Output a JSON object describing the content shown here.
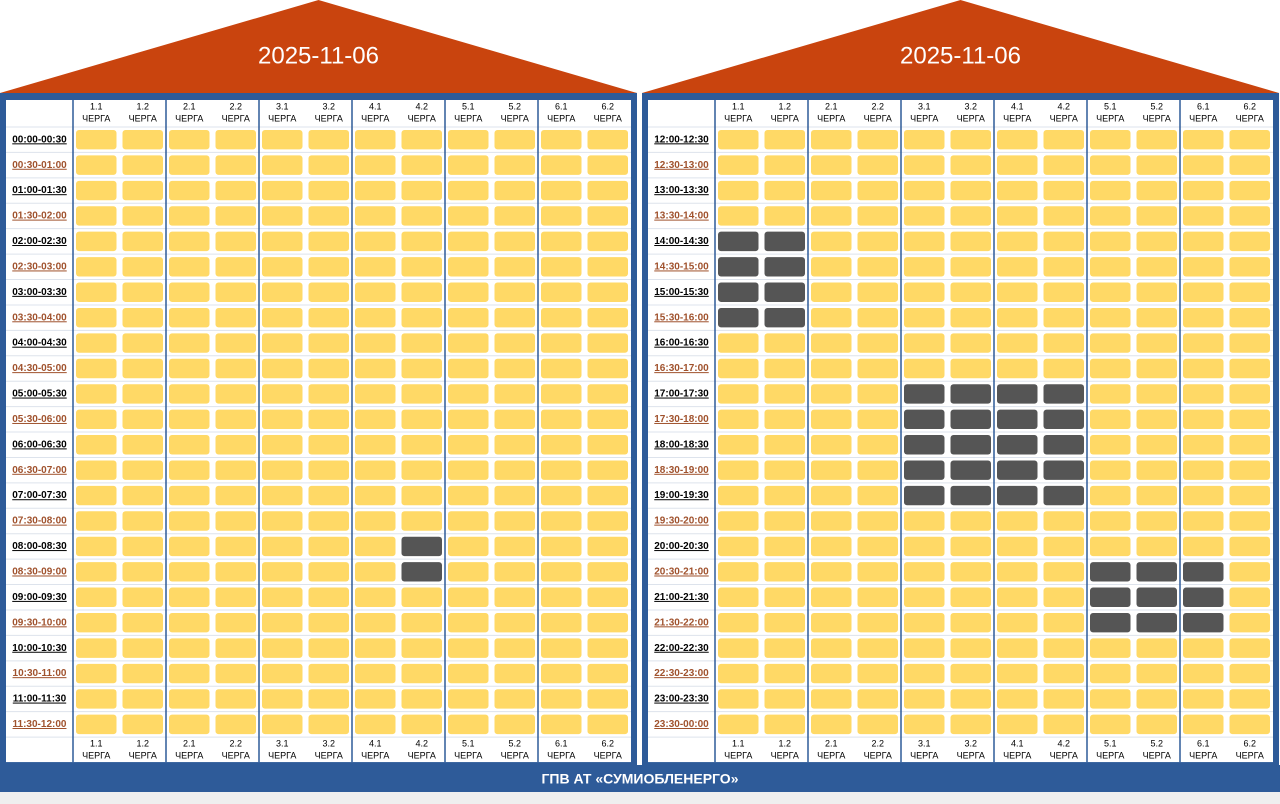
{
  "columns": [
    {
      "id": "1.1",
      "label": "ЧЕРГА"
    },
    {
      "id": "1.2",
      "label": "ЧЕРГА"
    },
    {
      "id": "2.1",
      "label": "ЧЕРГА"
    },
    {
      "id": "2.2",
      "label": "ЧЕРГА"
    },
    {
      "id": "3.1",
      "label": "ЧЕРГА"
    },
    {
      "id": "3.2",
      "label": "ЧЕРГА"
    },
    {
      "id": "4.1",
      "label": "ЧЕРГА"
    },
    {
      "id": "4.2",
      "label": "ЧЕРГА"
    },
    {
      "id": "5.1",
      "label": "ЧЕРГА"
    },
    {
      "id": "5.2",
      "label": "ЧЕРГА"
    },
    {
      "id": "6.1",
      "label": "ЧЕРГА"
    },
    {
      "id": "6.2",
      "label": "ЧЕРГА"
    }
  ],
  "panels": [
    {
      "date": "2025-11-06",
      "rows": [
        {
          "time": "00:00-00:30",
          "states": [
            0,
            0,
            0,
            0,
            0,
            0,
            0,
            0,
            0,
            0,
            0,
            0
          ]
        },
        {
          "time": "00:30-01:00",
          "states": [
            0,
            0,
            0,
            0,
            0,
            0,
            0,
            0,
            0,
            0,
            0,
            0
          ]
        },
        {
          "time": "01:00-01:30",
          "states": [
            0,
            0,
            0,
            0,
            0,
            0,
            0,
            0,
            0,
            0,
            0,
            0
          ]
        },
        {
          "time": "01:30-02:00",
          "states": [
            0,
            0,
            0,
            0,
            0,
            0,
            0,
            0,
            0,
            0,
            0,
            0
          ]
        },
        {
          "time": "02:00-02:30",
          "states": [
            0,
            0,
            0,
            0,
            0,
            0,
            0,
            0,
            0,
            0,
            0,
            0
          ]
        },
        {
          "time": "02:30-03:00",
          "states": [
            0,
            0,
            0,
            0,
            0,
            0,
            0,
            0,
            0,
            0,
            0,
            0
          ]
        },
        {
          "time": "03:00-03:30",
          "states": [
            0,
            0,
            0,
            0,
            0,
            0,
            0,
            0,
            0,
            0,
            0,
            0
          ]
        },
        {
          "time": "03:30-04:00",
          "states": [
            0,
            0,
            0,
            0,
            0,
            0,
            0,
            0,
            0,
            0,
            0,
            0
          ]
        },
        {
          "time": "04:00-04:30",
          "states": [
            0,
            0,
            0,
            0,
            0,
            0,
            0,
            0,
            0,
            0,
            0,
            0
          ]
        },
        {
          "time": "04:30-05:00",
          "states": [
            0,
            0,
            0,
            0,
            0,
            0,
            0,
            0,
            0,
            0,
            0,
            0
          ]
        },
        {
          "time": "05:00-05:30",
          "states": [
            0,
            0,
            0,
            0,
            0,
            0,
            0,
            0,
            0,
            0,
            0,
            0
          ]
        },
        {
          "time": "05:30-06:00",
          "states": [
            0,
            0,
            0,
            0,
            0,
            0,
            0,
            0,
            0,
            0,
            0,
            0
          ]
        },
        {
          "time": "06:00-06:30",
          "states": [
            0,
            0,
            0,
            0,
            0,
            0,
            0,
            0,
            0,
            0,
            0,
            0
          ]
        },
        {
          "time": "06:30-07:00",
          "states": [
            0,
            0,
            0,
            0,
            0,
            0,
            0,
            0,
            0,
            0,
            0,
            0
          ]
        },
        {
          "time": "07:00-07:30",
          "states": [
            0,
            0,
            0,
            0,
            0,
            0,
            0,
            0,
            0,
            0,
            0,
            0
          ]
        },
        {
          "time": "07:30-08:00",
          "states": [
            0,
            0,
            0,
            0,
            0,
            0,
            0,
            0,
            0,
            0,
            0,
            0
          ]
        },
        {
          "time": "08:00-08:30",
          "states": [
            0,
            0,
            0,
            0,
            0,
            0,
            0,
            1,
            0,
            0,
            0,
            0
          ]
        },
        {
          "time": "08:30-09:00",
          "states": [
            0,
            0,
            0,
            0,
            0,
            0,
            0,
            1,
            0,
            0,
            0,
            0
          ]
        },
        {
          "time": "09:00-09:30",
          "states": [
            0,
            0,
            0,
            0,
            0,
            0,
            0,
            0,
            0,
            0,
            0,
            0
          ]
        },
        {
          "time": "09:30-10:00",
          "states": [
            0,
            0,
            0,
            0,
            0,
            0,
            0,
            0,
            0,
            0,
            0,
            0
          ]
        },
        {
          "time": "10:00-10:30",
          "states": [
            0,
            0,
            0,
            0,
            0,
            0,
            0,
            0,
            0,
            0,
            0,
            0
          ]
        },
        {
          "time": "10:30-11:00",
          "states": [
            0,
            0,
            0,
            0,
            0,
            0,
            0,
            0,
            0,
            0,
            0,
            0
          ]
        },
        {
          "time": "11:00-11:30",
          "states": [
            0,
            0,
            0,
            0,
            0,
            0,
            0,
            0,
            0,
            0,
            0,
            0
          ]
        },
        {
          "time": "11:30-12:00",
          "states": [
            0,
            0,
            0,
            0,
            0,
            0,
            0,
            0,
            0,
            0,
            0,
            0
          ]
        }
      ]
    },
    {
      "date": "2025-11-06",
      "rows": [
        {
          "time": "12:00-12:30",
          "states": [
            0,
            0,
            0,
            0,
            0,
            0,
            0,
            0,
            0,
            0,
            0,
            0
          ]
        },
        {
          "time": "12:30-13:00",
          "states": [
            0,
            0,
            0,
            0,
            0,
            0,
            0,
            0,
            0,
            0,
            0,
            0
          ]
        },
        {
          "time": "13:00-13:30",
          "states": [
            0,
            0,
            0,
            0,
            0,
            0,
            0,
            0,
            0,
            0,
            0,
            0
          ]
        },
        {
          "time": "13:30-14:00",
          "states": [
            0,
            0,
            0,
            0,
            0,
            0,
            0,
            0,
            0,
            0,
            0,
            0
          ]
        },
        {
          "time": "14:00-14:30",
          "states": [
            1,
            1,
            0,
            0,
            0,
            0,
            0,
            0,
            0,
            0,
            0,
            0
          ]
        },
        {
          "time": "14:30-15:00",
          "states": [
            1,
            1,
            0,
            0,
            0,
            0,
            0,
            0,
            0,
            0,
            0,
            0
          ]
        },
        {
          "time": "15:00-15:30",
          "states": [
            1,
            1,
            0,
            0,
            0,
            0,
            0,
            0,
            0,
            0,
            0,
            0
          ]
        },
        {
          "time": "15:30-16:00",
          "states": [
            1,
            1,
            0,
            0,
            0,
            0,
            0,
            0,
            0,
            0,
            0,
            0
          ]
        },
        {
          "time": "16:00-16:30",
          "states": [
            0,
            0,
            0,
            0,
            0,
            0,
            0,
            0,
            0,
            0,
            0,
            0
          ]
        },
        {
          "time": "16:30-17:00",
          "states": [
            0,
            0,
            0,
            0,
            0,
            0,
            0,
            0,
            0,
            0,
            0,
            0
          ]
        },
        {
          "time": "17:00-17:30",
          "states": [
            0,
            0,
            0,
            0,
            1,
            1,
            1,
            1,
            0,
            0,
            0,
            0
          ]
        },
        {
          "time": "17:30-18:00",
          "states": [
            0,
            0,
            0,
            0,
            1,
            1,
            1,
            1,
            0,
            0,
            0,
            0
          ]
        },
        {
          "time": "18:00-18:30",
          "states": [
            0,
            0,
            0,
            0,
            1,
            1,
            1,
            1,
            0,
            0,
            0,
            0
          ]
        },
        {
          "time": "18:30-19:00",
          "states": [
            0,
            0,
            0,
            0,
            1,
            1,
            1,
            1,
            0,
            0,
            0,
            0
          ]
        },
        {
          "time": "19:00-19:30",
          "states": [
            0,
            0,
            0,
            0,
            1,
            1,
            1,
            1,
            0,
            0,
            0,
            0
          ]
        },
        {
          "time": "19:30-20:00",
          "states": [
            0,
            0,
            0,
            0,
            0,
            0,
            0,
            0,
            0,
            0,
            0,
            0
          ]
        },
        {
          "time": "20:00-20:30",
          "states": [
            0,
            0,
            0,
            0,
            0,
            0,
            0,
            0,
            0,
            0,
            0,
            0
          ]
        },
        {
          "time": "20:30-21:00",
          "states": [
            0,
            0,
            0,
            0,
            0,
            0,
            0,
            0,
            1,
            1,
            1,
            0
          ]
        },
        {
          "time": "21:00-21:30",
          "states": [
            0,
            0,
            0,
            0,
            0,
            0,
            0,
            0,
            1,
            1,
            1,
            0
          ]
        },
        {
          "time": "21:30-22:00",
          "states": [
            0,
            0,
            0,
            0,
            0,
            0,
            0,
            0,
            1,
            1,
            1,
            0
          ]
        },
        {
          "time": "22:00-22:30",
          "states": [
            0,
            0,
            0,
            0,
            0,
            0,
            0,
            0,
            0,
            0,
            0,
            0
          ]
        },
        {
          "time": "22:30-23:00",
          "states": [
            0,
            0,
            0,
            0,
            0,
            0,
            0,
            0,
            0,
            0,
            0,
            0
          ]
        },
        {
          "time": "23:00-23:30",
          "states": [
            0,
            0,
            0,
            0,
            0,
            0,
            0,
            0,
            0,
            0,
            0,
            0
          ]
        },
        {
          "time": "23:30-00:00",
          "states": [
            0,
            0,
            0,
            0,
            0,
            0,
            0,
            0,
            0,
            0,
            0,
            0
          ]
        }
      ]
    }
  ],
  "footer": "ГПВ АТ «СУМИОБЛЕНЕРГО»"
}
